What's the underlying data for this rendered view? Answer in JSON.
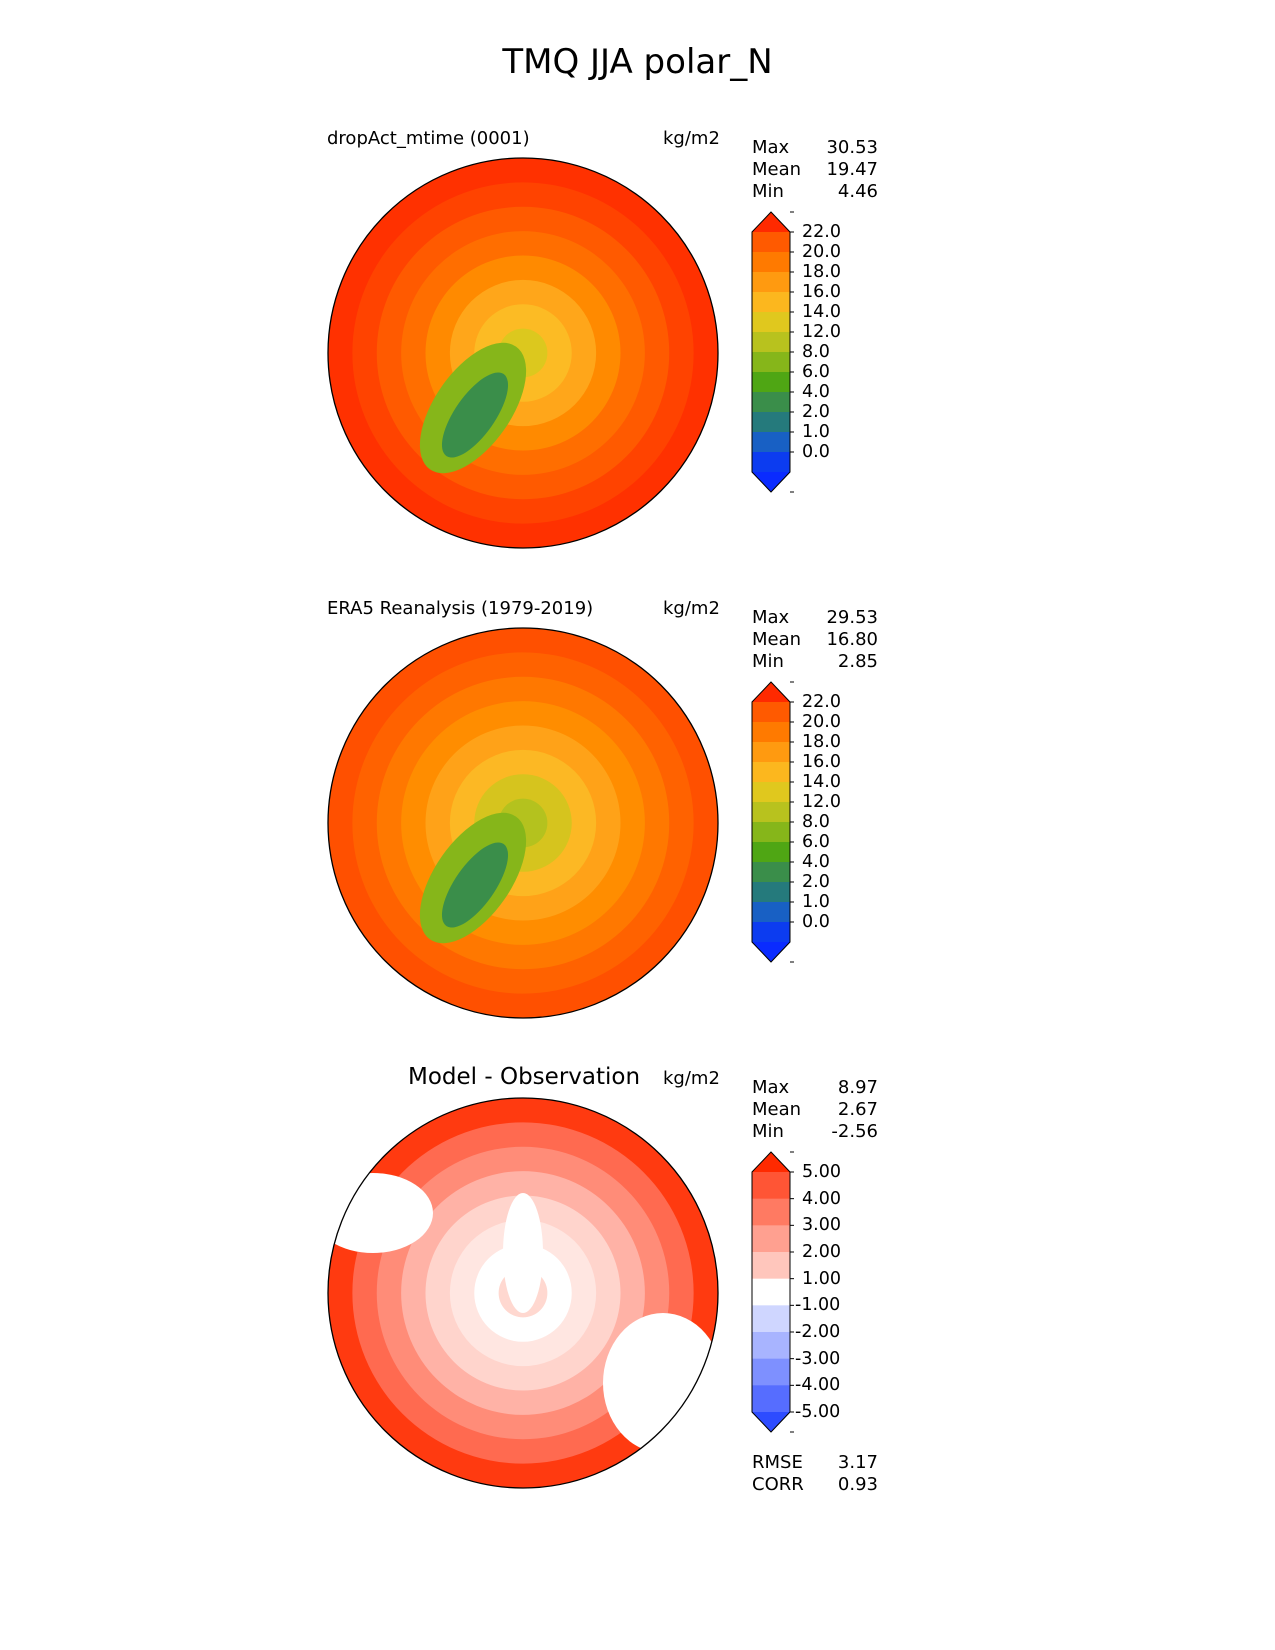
{
  "figure": {
    "title": "TMQ JJA polar_N"
  },
  "chart_data": [
    {
      "type": "polar_contour",
      "title": "dropAct_mtime (0001)",
      "units": "kg/m2",
      "stats": [
        {
          "name": "Max",
          "value": "30.53"
        },
        {
          "name": "Mean",
          "value": "19.47"
        },
        {
          "name": "Min",
          "value": "4.46"
        }
      ],
      "colorbar": {
        "levels": [
          "22.0",
          "20.0",
          "18.0",
          "16.0",
          "14.0",
          "12.0",
          "8.0",
          "6.0",
          "4.0",
          "2.0",
          "1.0",
          "0.0"
        ],
        "colors": [
          "#ff2a00",
          "#ff5a00",
          "#ff7a00",
          "#ff9a10",
          "#fcb71e",
          "#e0c81e",
          "#b8c21e",
          "#86b61a",
          "#4fa614",
          "#3a8e4a",
          "#257a7c",
          "#1860c4",
          "#0c3cf0",
          "#0a2bff"
        ]
      },
      "rings": [
        "#ff3100",
        "#ff4300",
        "#ff5a00",
        "#ff6e00",
        "#ff8a00",
        "#ffa61a",
        "#fcbb24",
        "#dcc81e"
      ]
    },
    {
      "type": "polar_contour",
      "title": "ERA5 Reanalysis (1979-2019)",
      "units": "kg/m2",
      "stats": [
        {
          "name": "Max",
          "value": "29.53"
        },
        {
          "name": "Mean",
          "value": "16.80"
        },
        {
          "name": "Min",
          "value": "2.85"
        }
      ],
      "colorbar": {
        "levels": [
          "22.0",
          "20.0",
          "18.0",
          "16.0",
          "14.0",
          "12.0",
          "8.0",
          "6.0",
          "4.0",
          "2.0",
          "1.0",
          "0.0"
        ],
        "colors": [
          "#ff2a00",
          "#ff5a00",
          "#ff7a00",
          "#ff9a10",
          "#fcb71e",
          "#e0c81e",
          "#b8c21e",
          "#86b61a",
          "#4fa614",
          "#3a8e4a",
          "#257a7c",
          "#1860c4",
          "#0c3cf0",
          "#0a2bff"
        ]
      },
      "rings": [
        "#ff5000",
        "#ff6200",
        "#ff7800",
        "#ff8d00",
        "#ffa218",
        "#fcb824",
        "#d6c41e",
        "#b4c21e"
      ]
    },
    {
      "type": "polar_contour",
      "title": "Model - Observation",
      "units": "kg/m2",
      "stats": [
        {
          "name": "Max",
          "value": "8.97"
        },
        {
          "name": "Mean",
          "value": "2.67"
        },
        {
          "name": "Min",
          "value": "-2.56"
        }
      ],
      "colorbar": {
        "levels": [
          "5.00",
          "4.00",
          "3.00",
          "2.00",
          "1.00",
          "-1.00",
          "-2.00",
          "-3.00",
          "-4.00",
          "-5.00"
        ],
        "colors": [
          "#ff2a00",
          "#ff5535",
          "#ff7a62",
          "#ffa090",
          "#ffc6bc",
          "#ffffff",
          "#cfd6ff",
          "#a8b4ff",
          "#7e90ff",
          "#566dff",
          "#2d4cff"
        ]
      },
      "metrics": [
        {
          "name": "RMSE",
          "value": "3.17"
        },
        {
          "name": "CORR",
          "value": "0.93"
        }
      ],
      "rings": [
        "#ff3a10",
        "#ff6a50",
        "#ff8c78",
        "#ffb2a6",
        "#ffd4cc",
        "#ffe6e1",
        "#ffffff",
        "#ffd8d0"
      ]
    }
  ]
}
